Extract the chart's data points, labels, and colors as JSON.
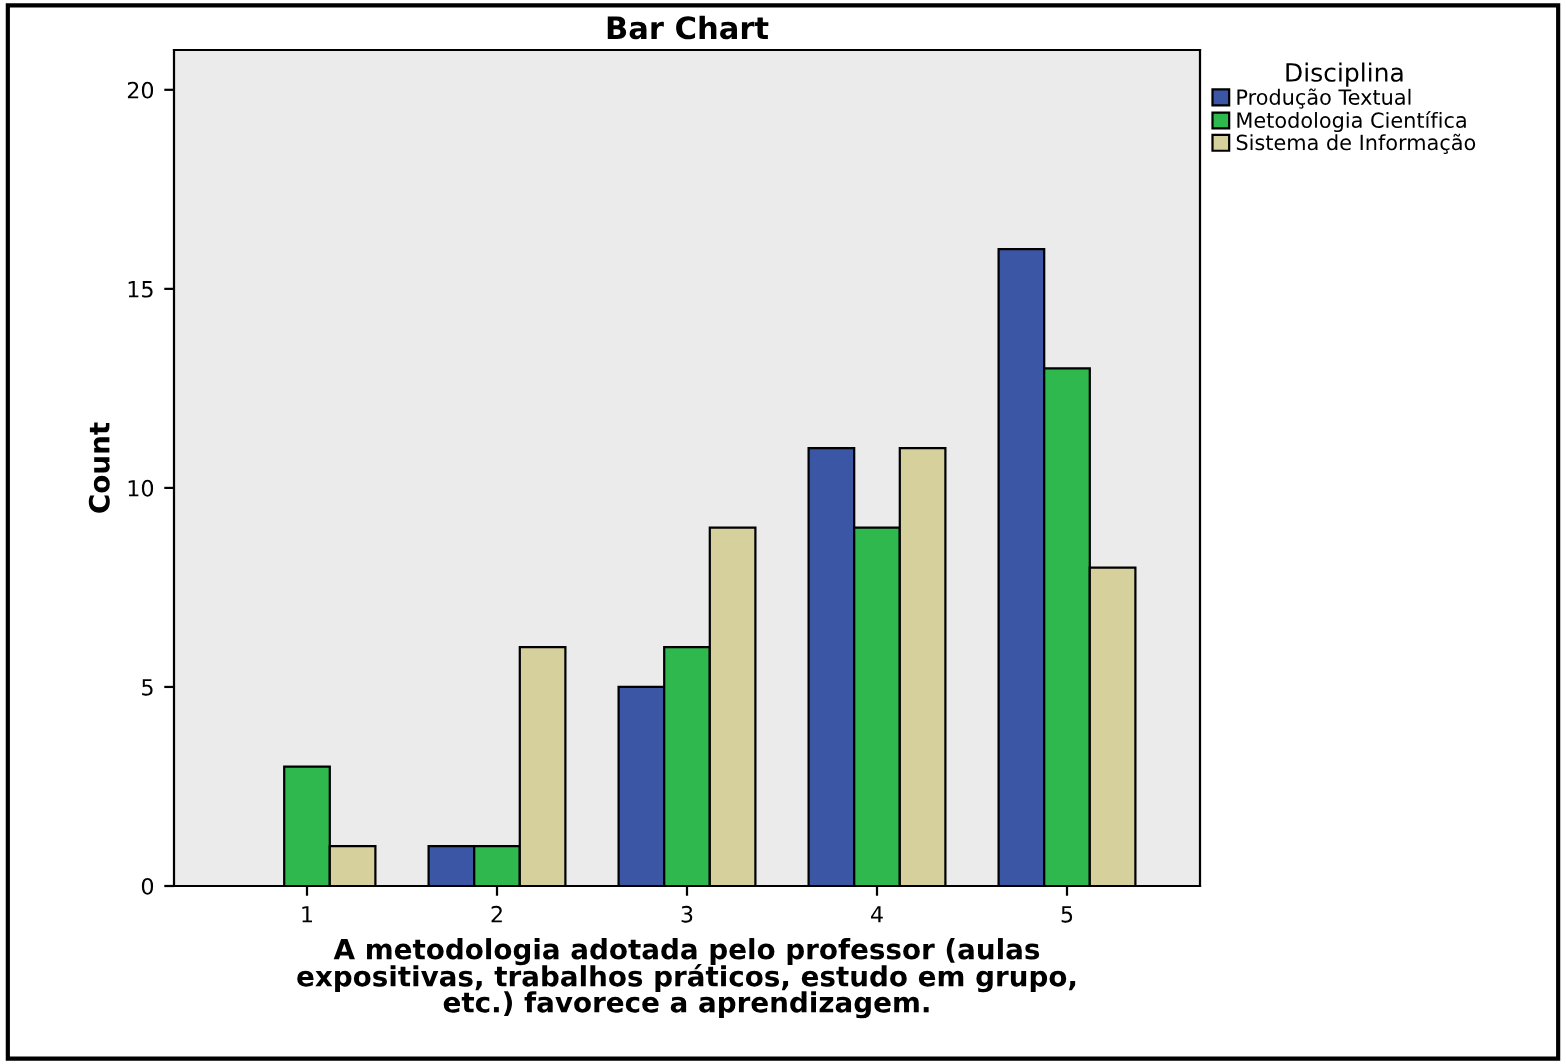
{
  "chart_data": {
    "type": "bar",
    "title": "Bar Chart",
    "categories": [
      "1",
      "2",
      "3",
      "4",
      "5"
    ],
    "series": [
      {
        "name": "Produção Textual",
        "color": "#3c56a6",
        "values": [
          null,
          1,
          5,
          11,
          16
        ]
      },
      {
        "name": "Metodologia Científica",
        "color": "#2fb84e",
        "values": [
          3,
          1,
          6,
          9,
          13
        ]
      },
      {
        "name": "Sistema de Informação",
        "color": "#d5d09c",
        "values": [
          1,
          6,
          9,
          11,
          8
        ]
      }
    ],
    "xlabel": "A metodologia adotada pelo professor (aulas\nexpositivas, trabalhos práticos, estudo em grupo,\netc.) favorece a aprendizagem.",
    "ylabel": "Count",
    "legend_title": "Disciplina",
    "ylim": [
      0,
      21
    ],
    "yticks": [
      0,
      5,
      10,
      15,
      20
    ],
    "grid": false,
    "legend": "top right"
  }
}
